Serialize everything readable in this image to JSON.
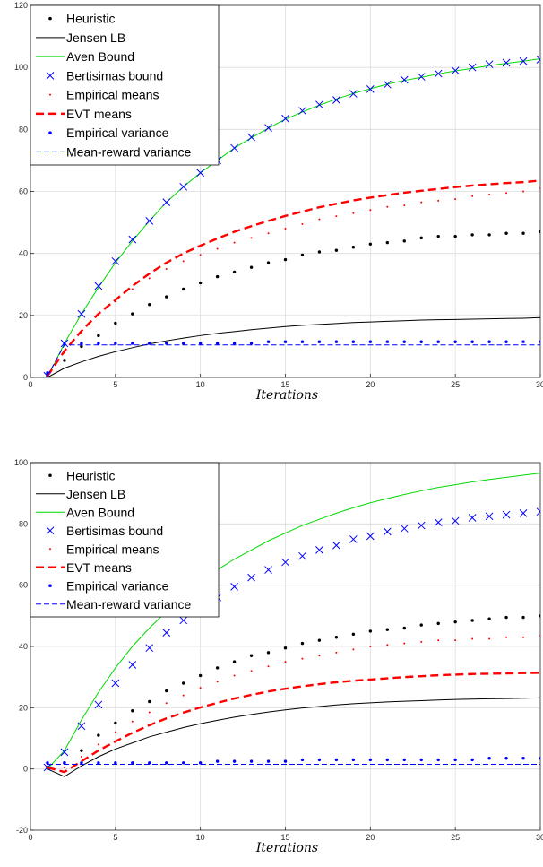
{
  "chart_data": [
    {
      "type": "line",
      "xlabel": "Iterations",
      "ylabel": "",
      "xlim": [
        0,
        30
      ],
      "ylim": [
        0,
        120
      ],
      "xticks": [
        0,
        5,
        10,
        15,
        20,
        25,
        30
      ],
      "yticks": [
        0,
        20,
        40,
        60,
        80,
        100,
        120
      ],
      "grid": true,
      "legend_position": "top-left",
      "x": [
        1,
        2,
        3,
        4,
        5,
        6,
        7,
        8,
        9,
        10,
        11,
        12,
        13,
        14,
        15,
        16,
        17,
        18,
        19,
        20,
        21,
        22,
        23,
        24,
        25,
        26,
        27,
        28,
        29,
        30
      ],
      "series": [
        {
          "name": "Heuristic",
          "style": "dots",
          "color": "#000000",
          "values": [
            0.5,
            5.5,
            10,
            13.5,
            17.5,
            20.5,
            23.5,
            26,
            28.5,
            30.5,
            32.5,
            34,
            35.5,
            37,
            38,
            39.5,
            40.5,
            41,
            42,
            43,
            43.5,
            44,
            45,
            45.5,
            45.5,
            46,
            46,
            46.5,
            46.5,
            47
          ]
        },
        {
          "name": "Jensen LB",
          "style": "line",
          "color": "#000000",
          "values": [
            0,
            3,
            5,
            6.8,
            8.3,
            9.6,
            10.8,
            11.8,
            12.7,
            13.5,
            14.2,
            14.8,
            15.4,
            15.9,
            16.4,
            16.8,
            17.1,
            17.4,
            17.7,
            17.9,
            18.1,
            18.3,
            18.5,
            18.6,
            18.7,
            18.8,
            18.9,
            19,
            19.1,
            19.3
          ]
        },
        {
          "name": "Aven Bound",
          "style": "line",
          "color": "#00d900",
          "values": [
            0,
            11,
            20.5,
            29,
            37,
            44,
            50.5,
            56.5,
            61.5,
            66,
            70,
            74,
            77.3,
            80.4,
            83.3,
            85.6,
            87.8,
            89.8,
            91.6,
            93.1,
            94.6,
            95.8,
            96.8,
            97.9,
            98.9,
            99.7,
            100.6,
            101.3,
            102,
            102.8
          ]
        },
        {
          "name": "Bertisimas bound",
          "style": "x",
          "color": "#0000ff",
          "values": [
            0.5,
            11,
            20.5,
            29.5,
            37.5,
            44.5,
            50.5,
            56.5,
            61.5,
            66,
            70,
            74,
            77.5,
            80.5,
            83.5,
            86,
            88,
            89.5,
            91.5,
            93,
            94.5,
            96,
            97,
            98,
            99,
            100,
            101,
            101.5,
            102,
            102.5
          ]
        },
        {
          "name": "Empirical means",
          "style": "smalldots",
          "color": "#ff0000",
          "values": [
            0.5,
            8,
            14.5,
            20,
            24.5,
            28.5,
            32,
            35,
            37.5,
            39.5,
            41.5,
            43.5,
            45,
            46.5,
            48,
            49.5,
            51,
            52,
            53,
            54,
            55,
            55.5,
            56.5,
            57,
            57.5,
            58.5,
            59,
            59.5,
            60,
            61
          ]
        },
        {
          "name": "EVT means",
          "style": "dashed",
          "color": "#ff0000",
          "values": [
            0.5,
            8.5,
            15,
            20.5,
            25,
            29.5,
            33.5,
            37,
            40,
            42.5,
            44.8,
            47,
            48.8,
            50.5,
            52.1,
            53.5,
            54.9,
            56,
            57.1,
            58,
            58.8,
            59.6,
            60.2,
            60.8,
            61.4,
            61.9,
            62.3,
            62.7,
            63,
            63.5
          ]
        },
        {
          "name": "Empirical variance",
          "style": "dots",
          "color": "#0000ff",
          "values": [
            1.5,
            11,
            11,
            11,
            11,
            11,
            11,
            11,
            11,
            11,
            11,
            11,
            11,
            11.5,
            11.5,
            11.5,
            11.5,
            11.5,
            11.5,
            11.5,
            11.5,
            11.5,
            11.5,
            11.5,
            11.5,
            11.5,
            11.5,
            11.5,
            11.5,
            11.5
          ]
        },
        {
          "name": "Mean-reward variance",
          "style": "thindash",
          "color": "#0000ff",
          "values": [
            0.5,
            10.5,
            10.5,
            10.5,
            10.5,
            10.5,
            10.5,
            10.5,
            10.5,
            10.5,
            10.5,
            10.5,
            10.5,
            10.5,
            10.5,
            10.5,
            10.5,
            10.5,
            10.5,
            10.5,
            10.5,
            10.5,
            10.5,
            10.5,
            10.5,
            10.5,
            10.5,
            10.5,
            10.5,
            10.5
          ]
        }
      ]
    },
    {
      "type": "line",
      "xlabel": "Iterations",
      "ylabel": "",
      "xlim": [
        0,
        30
      ],
      "ylim": [
        -20,
        100
      ],
      "xticks": [
        0,
        5,
        10,
        15,
        20,
        25,
        30
      ],
      "yticks": [
        -20,
        0,
        20,
        40,
        60,
        80,
        100
      ],
      "grid": true,
      "legend_position": "top-left",
      "x": [
        1,
        2,
        3,
        4,
        5,
        6,
        7,
        8,
        9,
        10,
        11,
        12,
        13,
        14,
        15,
        16,
        17,
        18,
        19,
        20,
        21,
        22,
        23,
        24,
        25,
        26,
        27,
        28,
        29,
        30
      ],
      "series": [
        {
          "name": "Heuristic",
          "style": "dots",
          "color": "#000000",
          "values": [
            0.5,
            2,
            6,
            11,
            15,
            19,
            22,
            25.5,
            28,
            30.5,
            33,
            35,
            37,
            38,
            39.5,
            41,
            42,
            43,
            44,
            45,
            45.5,
            46,
            47,
            47.5,
            48,
            48.5,
            49,
            49.5,
            49.5,
            50
          ]
        },
        {
          "name": "Jensen LB",
          "style": "line",
          "color": "#000000",
          "values": [
            0,
            -2.5,
            1,
            4,
            6.5,
            8.5,
            10.5,
            12,
            13.5,
            14.8,
            15.9,
            16.9,
            17.8,
            18.6,
            19.3,
            19.9,
            20.4,
            20.9,
            21.3,
            21.6,
            21.9,
            22.1,
            22.3,
            22.5,
            22.7,
            22.8,
            22.9,
            23,
            23.1,
            23.2
          ]
        },
        {
          "name": "Aven Bound",
          "style": "line",
          "color": "#00d900",
          "values": [
            0,
            6,
            16,
            25,
            33,
            40,
            46,
            51.5,
            56.5,
            61,
            65,
            68.5,
            71.5,
            74.5,
            77,
            79.5,
            81.5,
            83.5,
            85.3,
            86.9,
            88.3,
            89.6,
            90.8,
            91.9,
            92.8,
            93.7,
            94.5,
            95.2,
            95.9,
            96.6
          ]
        },
        {
          "name": "Bertisimas bound",
          "style": "x",
          "color": "#0000ff",
          "values": [
            0.5,
            5.5,
            14,
            21,
            28,
            34,
            39.5,
            44.5,
            48.5,
            52.5,
            56,
            59.5,
            62.5,
            65,
            67.5,
            69.5,
            71.5,
            73,
            75,
            76,
            77.5,
            78.5,
            79.5,
            80.5,
            81,
            82,
            82.5,
            83,
            83.5,
            84
          ]
        },
        {
          "name": "Empirical means",
          "style": "smalldots",
          "color": "#ff0000",
          "values": [
            0.5,
            0.5,
            4,
            8,
            12,
            15.5,
            18.5,
            21.5,
            24,
            26.5,
            28.5,
            30.5,
            32,
            33.5,
            35,
            36,
            37,
            38,
            39,
            40,
            40.5,
            41,
            41.5,
            42,
            42,
            42.5,
            42.5,
            43,
            43,
            43.5
          ]
        },
        {
          "name": "EVT means",
          "style": "dashed",
          "color": "#ff0000",
          "values": [
            0.5,
            -1,
            2.5,
            6,
            9,
            11.8,
            14.3,
            16.5,
            18.4,
            20.1,
            21.6,
            23,
            24.2,
            25.3,
            26.2,
            27,
            27.7,
            28.3,
            28.8,
            29.2,
            29.6,
            30,
            30.3,
            30.6,
            30.8,
            31,
            31.1,
            31.2,
            31.3,
            31.4
          ]
        },
        {
          "name": "Empirical variance",
          "style": "dots",
          "color": "#0000ff",
          "values": [
            2,
            2,
            2,
            2,
            2,
            2,
            2,
            2,
            2,
            2,
            2.5,
            2.5,
            2.5,
            2.5,
            2.5,
            3,
            3,
            3,
            3,
            3,
            3,
            3,
            3,
            3,
            3,
            3,
            3.5,
            3.5,
            3.5,
            3.5
          ]
        },
        {
          "name": "Mean-reward variance",
          "style": "thindash",
          "color": "#0000ff",
          "values": [
            1.5,
            1.5,
            1.5,
            1.5,
            1.5,
            1.5,
            1.5,
            1.5,
            1.5,
            1.5,
            1.5,
            1.5,
            1.5,
            1.5,
            1.5,
            1.5,
            1.5,
            1.5,
            1.5,
            1.5,
            1.5,
            1.5,
            1.5,
            1.5,
            1.5,
            1.5,
            1.5,
            1.5,
            1.5,
            1.5
          ]
        }
      ]
    }
  ]
}
